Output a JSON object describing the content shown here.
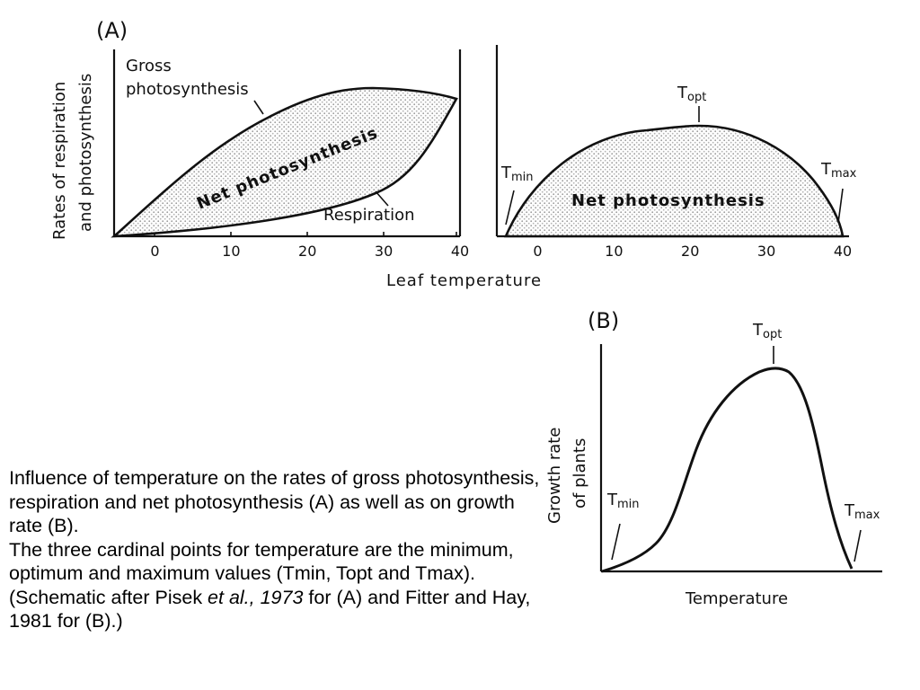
{
  "panel_a": {
    "label": "(A)",
    "y_axis_label_line1": "Rates of respiration",
    "y_axis_label_line2": "and photosynthesis",
    "x_axis_label": "Leaf temperature",
    "left": {
      "gross_label_line1": "Gross",
      "gross_label_line2": "photosynthesis",
      "net_label": "Net photosynthesis",
      "respiration_label": "Respiration"
    },
    "right": {
      "tmin_label": "T",
      "tmin_sub": "min",
      "topt_label": "T",
      "topt_sub": "opt",
      "tmax_label": "T",
      "tmax_sub": "max",
      "net_label": "Net photosynthesis"
    }
  },
  "panel_b": {
    "label": "(B)",
    "y_axis_label_line1": "Growth rate",
    "y_axis_label_line2": "of plants",
    "x_axis_label": "Temperature",
    "tmin_label": "T",
    "tmin_sub": "min",
    "topt_label": "T",
    "topt_sub": "opt",
    "tmax_label": "T",
    "tmax_sub": "max"
  },
  "caption": {
    "para1": "Influence of temperature on the rates of gross photosynthesis, respiration and net photosynthesis (A) as well as on growth rate (B).",
    "para2_part1": "The three cardinal points for temperature are the minimum, optimum and maximum values (Tmin, Topt and Tmax). (Schematic after Pisek ",
    "para2_italic": "et al., 1973",
    "para2_part2": " for (A) and Fitter and Hay, 1981 for (B).)"
  },
  "chart_data": [
    {
      "type": "area",
      "panel": "A-left",
      "x_ticks": [
        0,
        10,
        20,
        30,
        40
      ],
      "xlim": [
        -5,
        40
      ],
      "series": [
        {
          "name": "Gross photosynthesis",
          "x": [
            -5,
            0,
            10,
            20,
            28,
            35,
            39
          ],
          "y": [
            0,
            0.2,
            0.55,
            0.8,
            0.88,
            0.86,
            0.82
          ]
        },
        {
          "name": "Respiration",
          "x": [
            -5,
            0,
            10,
            20,
            30,
            35,
            39
          ],
          "y": [
            0,
            0.02,
            0.07,
            0.15,
            0.3,
            0.5,
            0.82
          ]
        }
      ]
    },
    {
      "type": "area",
      "panel": "A-right",
      "x_ticks": [
        0,
        10,
        20,
        30,
        40
      ],
      "xlim": [
        -5,
        40
      ],
      "series": [
        {
          "name": "Net photosynthesis",
          "x": [
            -4,
            0,
            10,
            21,
            30,
            35,
            39
          ],
          "y": [
            0,
            0.25,
            0.7,
            0.88,
            0.7,
            0.45,
            0
          ]
        }
      ]
    },
    {
      "type": "line",
      "panel": "B",
      "series": [
        {
          "name": "Growth rate of plants",
          "x": [
            0,
            0.1,
            0.2,
            0.3,
            0.45,
            0.6,
            0.68,
            0.75,
            0.82,
            0.9,
            0.95
          ],
          "y": [
            0,
            0.05,
            0.1,
            0.25,
            0.65,
            0.93,
            1.0,
            0.92,
            0.55,
            0.12,
            0
          ]
        }
      ]
    }
  ]
}
